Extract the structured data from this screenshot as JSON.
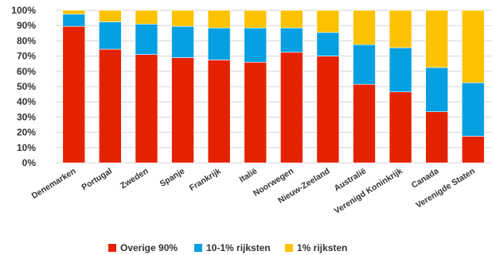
{
  "chart_data": {
    "type": "bar",
    "stacked": true,
    "title": "",
    "xlabel": "",
    "ylabel": "",
    "ylim": [
      0,
      100
    ],
    "yticks": [
      "0%",
      "10%",
      "20%",
      "30%",
      "40%",
      "50%",
      "60%",
      "70%",
      "80%",
      "90%",
      "100%"
    ],
    "grid": true,
    "legend_position": "bottom",
    "categories": [
      "Denemarken",
      "Portugal",
      "Zweden",
      "Spanje",
      "Frankrijk",
      "Italië",
      "Noorwegen",
      "Nieuw-Zeeland",
      "Australië",
      "Verenigd Koninkrijk",
      "Canada",
      "Verenigde Staten"
    ],
    "series": [
      {
        "name": "Overige 90%",
        "color": "#e52200",
        "values": [
          89.5,
          74.5,
          71,
          69,
          67.5,
          66,
          72.5,
          70,
          51.5,
          46.5,
          33.5,
          17.5
        ]
      },
      {
        "name": "10-1% rijksten",
        "color": "#06a0e2",
        "values": [
          8,
          18,
          20,
          20.5,
          21,
          22.5,
          16,
          15.5,
          26,
          29,
          29,
          35
        ]
      },
      {
        "name": "1% rijksten",
        "color": "#fcc200",
        "values": [
          2.5,
          7.5,
          9,
          10.5,
          11.5,
          11.5,
          11.5,
          14.5,
          22.5,
          24.5,
          37.5,
          47.5
        ]
      }
    ]
  }
}
